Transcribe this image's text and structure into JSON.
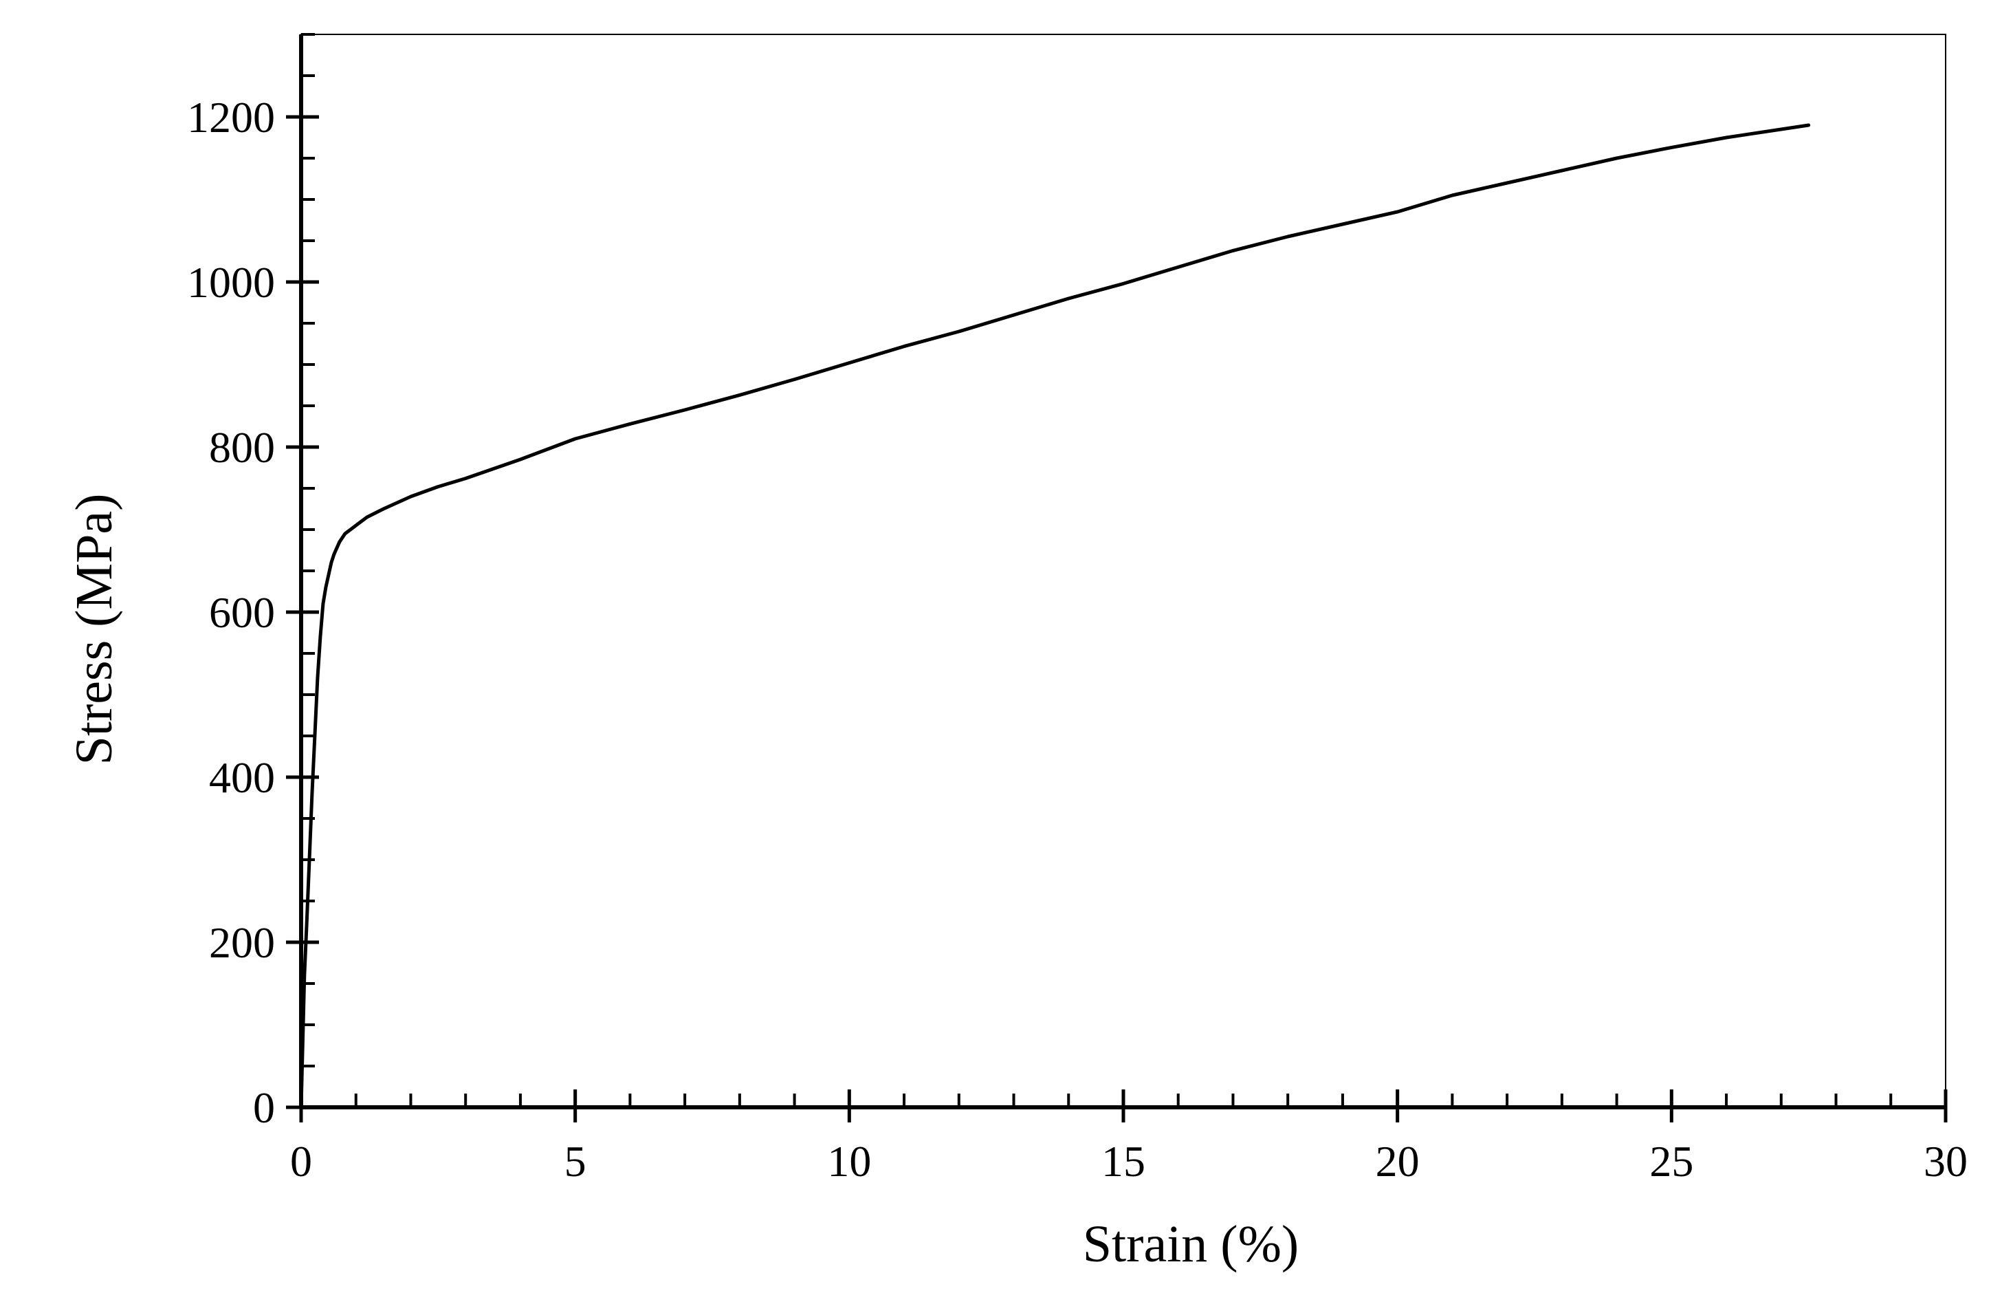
{
  "chart_data": {
    "type": "line",
    "title": "",
    "xlabel": "Strain (%)",
    "ylabel": "Stress (MPa)",
    "xlim": [
      0,
      30
    ],
    "ylim": [
      0,
      1300
    ],
    "x_ticks": [
      0,
      5,
      10,
      15,
      20,
      25,
      30
    ],
    "y_ticks": [
      0,
      200,
      400,
      600,
      800,
      1000,
      1200
    ],
    "x_minor_step": 1,
    "y_minor_step": 50,
    "grid": false,
    "legend": "none",
    "line_color": "#000000",
    "series": [
      {
        "x": [
          0,
          0.03,
          0.06,
          0.1,
          0.15,
          0.2,
          0.25,
          0.3,
          0.35,
          0.4,
          0.45,
          0.5,
          0.55,
          0.6,
          0.7,
          0.8,
          0.9,
          1.0,
          1.2,
          1.5,
          2.0,
          2.5,
          3.0,
          4.0,
          5.0,
          6.0,
          7.0,
          8.0,
          9.0,
          10.0,
          11.0,
          12.0,
          13.0,
          14.0,
          15.0,
          16.0,
          17.0,
          18.0,
          19.0,
          20.0,
          21.0,
          22.0,
          23.0,
          24.0,
          25.0,
          26.0,
          27.0,
          27.5
        ],
        "y": [
          0,
          80,
          160,
          220,
          300,
          380,
          450,
          520,
          570,
          610,
          630,
          645,
          660,
          670,
          685,
          695,
          700,
          705,
          715,
          725,
          740,
          752,
          762,
          785,
          810,
          828,
          845,
          863,
          882,
          902,
          922,
          940,
          960,
          980,
          998,
          1018,
          1038,
          1055,
          1070,
          1085,
          1105,
          1120,
          1135,
          1150,
          1163,
          1175,
          1185,
          1190
        ]
      }
    ]
  }
}
